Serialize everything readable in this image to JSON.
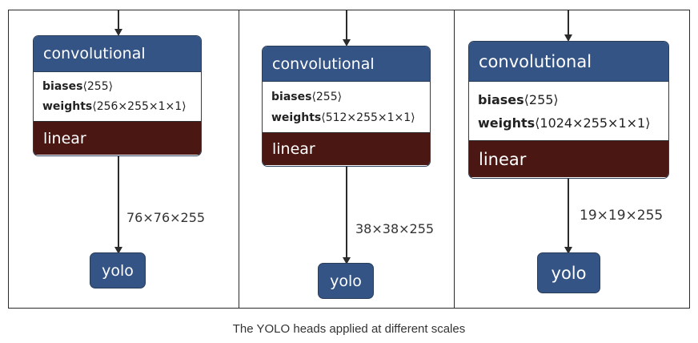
{
  "caption": "The YOLO heads applied at different scales",
  "heads": [
    {
      "layer": "convolutional",
      "biases_label": "biases",
      "biases_value": "⟨255⟩",
      "weights_label": "weights",
      "weights_value": "⟨256×255×1×1⟩",
      "activation": "linear",
      "output_shape": "76×76×255",
      "output_node": "yolo"
    },
    {
      "layer": "convolutional",
      "biases_label": "biases",
      "biases_value": "⟨255⟩",
      "weights_label": "weights",
      "weights_value": "⟨512×255×1×1⟩",
      "activation": "linear",
      "output_shape": "38×38×255",
      "output_node": "yolo"
    },
    {
      "layer": "convolutional",
      "biases_label": "biases",
      "biases_value": "⟨255⟩",
      "weights_label": "weights",
      "weights_value": "⟨1024×255×1×1⟩",
      "activation": "linear",
      "output_shape": "19×19×255",
      "output_node": "yolo"
    }
  ],
  "colors": {
    "node_header": "#345486",
    "activation": "#4a1712",
    "body": "#ffffff",
    "border": "#2a2a2a"
  }
}
